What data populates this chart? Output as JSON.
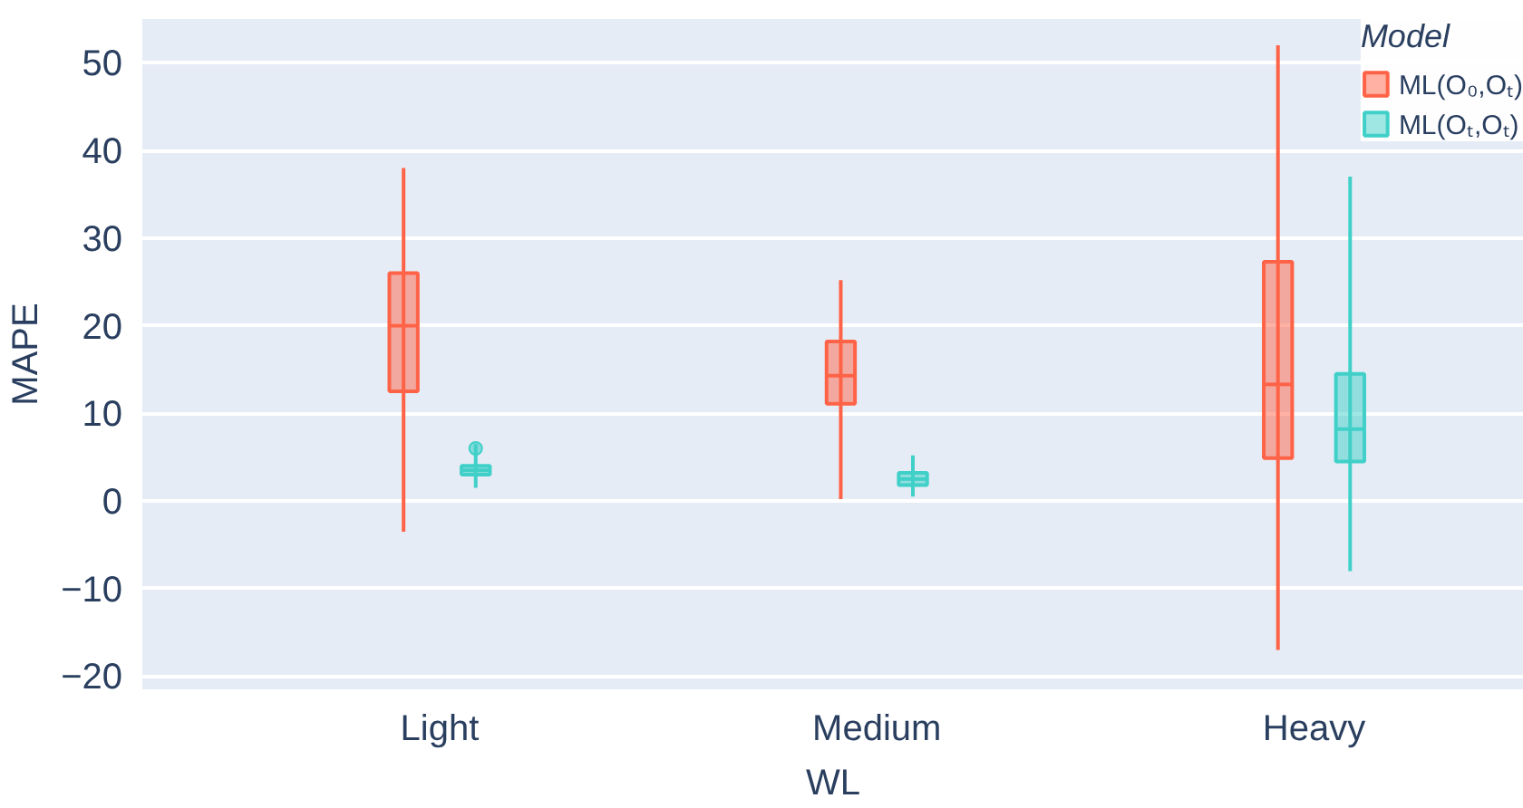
{
  "chart_data": {
    "type": "box",
    "xlabel": "WL",
    "ylabel": "MAPE",
    "categories": [
      "Light",
      "Medium",
      "Heavy"
    ],
    "series": [
      {
        "name": "ML(O₀,Oₜ)",
        "color": "#ff6347",
        "boxes": [
          {
            "low": -3.5,
            "q1": 12.5,
            "median": 20,
            "q3": 26,
            "high": 38
          },
          {
            "low": 0.2,
            "q1": 11.1,
            "median": 14.3,
            "q3": 18.2,
            "high": 25.2
          },
          {
            "low": -17,
            "q1": 4.9,
            "median": 13.3,
            "q3": 27.3,
            "high": 52
          }
        ]
      },
      {
        "name": "ML(Oₜ,Oₜ)",
        "color": "#40d0c8",
        "boxes": [
          {
            "low": 1.5,
            "q1": 3,
            "median": 3.5,
            "q3": 4,
            "high": 6.5,
            "outliers": [
              6
            ]
          },
          {
            "low": 0.5,
            "q1": 1.8,
            "median": 2.5,
            "q3": 3.2,
            "high": 5.2
          },
          {
            "low": -8,
            "q1": 4.5,
            "median": 8.2,
            "q3": 14.5,
            "high": 37
          }
        ]
      }
    ],
    "ylim": [
      -21.5,
      55
    ],
    "yticks": [
      {
        "value": -20,
        "label": "−20"
      },
      {
        "value": -10,
        "label": "−10"
      },
      0,
      10,
      20,
      30,
      40,
      50
    ],
    "grid": "y",
    "legend": "top right",
    "legend_title": "Model"
  }
}
